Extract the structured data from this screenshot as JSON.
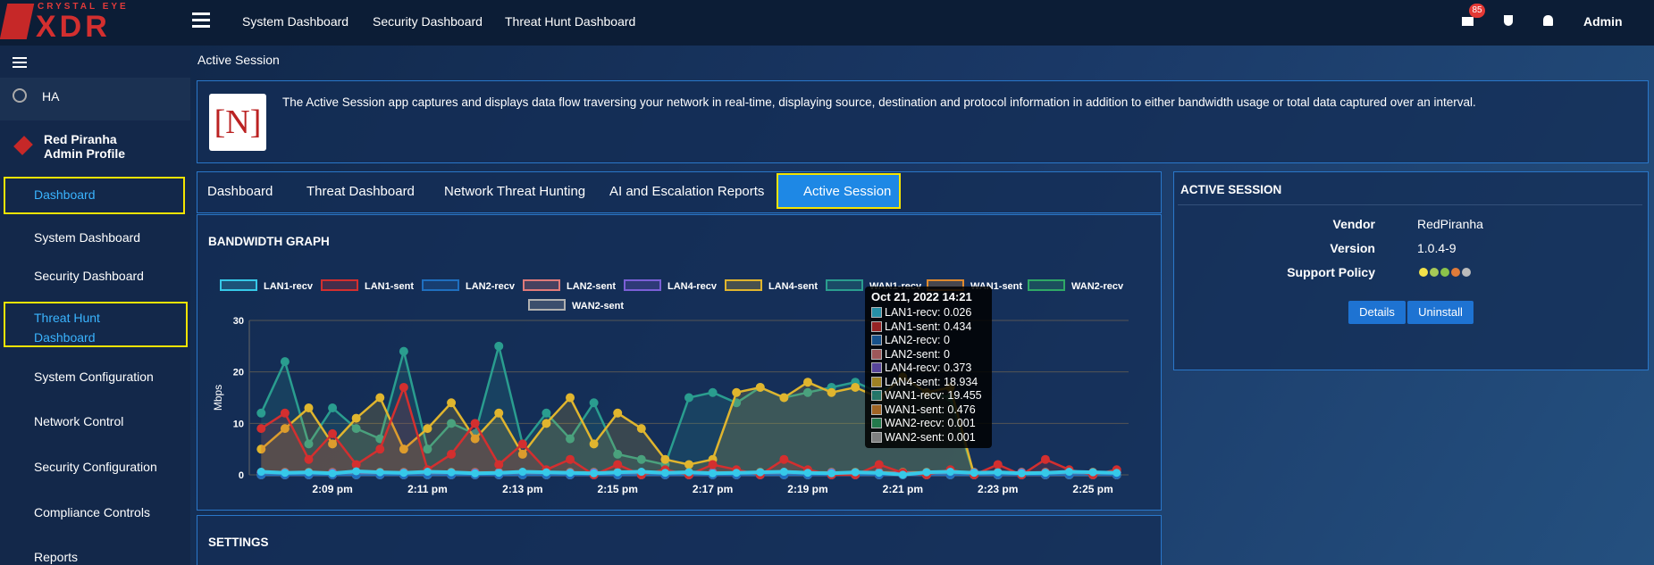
{
  "top_nav": {
    "logo_top": "CRYSTAL EYE",
    "logo_main": "XDR",
    "links": [
      "System Dashboard",
      "Security Dashboard",
      "Threat Hunt Dashboard"
    ],
    "mail_badge": 85,
    "user": "Admin"
  },
  "sidebar": {
    "ha": "HA",
    "profile": {
      "name": "Red Piranha",
      "role": "Admin Profile"
    },
    "menu": [
      {
        "label": "Dashboard",
        "children": [
          "System Dashboard",
          "Security Dashboard",
          "Threat Hunt Dashboard"
        ]
      },
      {
        "label": "System Configuration"
      },
      {
        "label": "Network Control"
      },
      {
        "label": "Security Configuration"
      },
      {
        "label": "Compliance Controls"
      },
      {
        "label": "Reports"
      }
    ]
  },
  "page": {
    "title": "Active Session",
    "app_icon": "[N]",
    "description": "The Active Session app captures and displays data flow traversing your network in real-time, displaying source, destination and protocol information in addition to either bandwidth usage or total data captured over an interval.",
    "tabs": [
      "Dashboard",
      "Threat Dashboard",
      "Network Threat Hunting",
      "AI and Escalation Reports",
      "Active Session"
    ],
    "graph_panel_title": "BANDWIDTH GRAPH",
    "settings_title": "SETTINGS"
  },
  "chart_data": {
    "type": "line",
    "y_label": "Mbps",
    "ylim": [
      0,
      30
    ],
    "yticks": [
      0,
      10,
      20,
      30
    ],
    "grid": true,
    "categories": [
      null,
      null,
      null,
      "2:09 pm",
      null,
      null,
      null,
      "2:11 pm",
      null,
      null,
      null,
      "2:13 pm",
      null,
      null,
      null,
      "2:15 pm",
      null,
      null,
      null,
      "2:17 pm",
      null,
      null,
      null,
      "2:19 pm",
      null,
      null,
      null,
      "2:21 pm",
      null,
      null,
      null,
      "2:23 pm",
      null,
      null,
      null,
      "2:25 pm",
      null
    ],
    "series": [
      {
        "name": "LAN1-recv",
        "color": "#36c9e8",
        "values": [
          0.6,
          0.4,
          0.5,
          0.3,
          0.7,
          0.5,
          0.4,
          0.6,
          0.5,
          0.3,
          0.4,
          0.6,
          0.5,
          0.4,
          0.3,
          0.5,
          0.6,
          0.4,
          0.5,
          0.3,
          0.4,
          0.5,
          0.6,
          0.4,
          0.3,
          0.5,
          0.4,
          0.03,
          0.5,
          0.6,
          0.4,
          0.5,
          0.3,
          0.4,
          0.6,
          0.5,
          0.4
        ]
      },
      {
        "name": "LAN1-sent",
        "color": "#d32f2f",
        "values": [
          9,
          12,
          3,
          8,
          2,
          5,
          17,
          1,
          4,
          10,
          2,
          6,
          1,
          3,
          0,
          2,
          0,
          1,
          0,
          2,
          1,
          0,
          3,
          1,
          0,
          0,
          2,
          0.4,
          0,
          1,
          0,
          2,
          0,
          3,
          1,
          0,
          1
        ]
      },
      {
        "name": "LAN2-recv",
        "color": "#1f6fbf",
        "values": [
          0,
          0,
          0,
          0,
          0,
          0,
          0,
          0,
          0,
          0,
          0,
          0,
          0,
          0,
          0,
          0,
          0,
          0,
          0,
          0,
          0,
          0,
          0,
          0,
          0,
          0,
          0,
          0,
          0,
          0,
          0,
          0,
          0,
          0,
          0,
          0,
          0
        ]
      },
      {
        "name": "LAN2-sent",
        "color": "#e07a7a",
        "values": [
          0,
          0,
          0,
          0,
          0,
          0,
          0,
          0,
          0,
          0,
          0,
          0,
          0,
          0,
          0,
          0,
          0,
          0,
          0,
          0,
          0,
          0,
          0,
          0,
          0,
          0,
          0,
          0,
          0,
          0,
          0,
          0,
          0,
          0,
          0,
          0,
          0
        ]
      },
      {
        "name": "LAN4-recv",
        "color": "#7b5fd6",
        "values": [
          0.4,
          0.4,
          0.4,
          0.4,
          0.4,
          0.4,
          0.4,
          0.4,
          0.4,
          0.4,
          0.4,
          0.4,
          0.4,
          0.4,
          0.4,
          0.4,
          0.4,
          0.4,
          0.4,
          0.4,
          0.4,
          0.4,
          0.4,
          0.4,
          0.4,
          0.4,
          0.4,
          0.4,
          0.4,
          0.4,
          0.4,
          0.4,
          0.4,
          0.4,
          0.4,
          0.4,
          0.4
        ]
      },
      {
        "name": "LAN4-sent",
        "color": "#e0b52e",
        "values": [
          5,
          9,
          13,
          6,
          11,
          15,
          5,
          9,
          14,
          7,
          12,
          4,
          10,
          15,
          6,
          12,
          9,
          3,
          2,
          3,
          16,
          17,
          15,
          18,
          16,
          17,
          15,
          19,
          16,
          17,
          0,
          0,
          0,
          0,
          0,
          0,
          0
        ]
      },
      {
        "name": "WAN1-recv",
        "color": "#2a9d8f",
        "values": [
          12,
          22,
          6,
          13,
          9,
          7,
          24,
          5,
          10,
          8,
          25,
          6,
          12,
          7,
          14,
          4,
          3,
          2,
          15,
          16,
          14,
          17,
          15,
          16,
          17,
          18,
          16,
          19,
          16,
          15,
          0,
          0,
          0,
          0,
          0,
          0,
          0
        ]
      },
      {
        "name": "WAN1-sent",
        "color": "#e08a2e",
        "values": [
          0.5,
          0.5,
          0.5,
          0.5,
          0.5,
          0.5,
          0.5,
          0.5,
          0.5,
          0.5,
          0.5,
          0.5,
          0.5,
          0.5,
          0.5,
          0.5,
          0.5,
          0.5,
          0.5,
          0.5,
          0.5,
          0.5,
          0.5,
          0.5,
          0.5,
          0.5,
          0.5,
          0.5,
          0.5,
          0.5,
          0.5,
          0.5,
          0.5,
          0.5,
          0.5,
          0.5,
          0.5
        ]
      },
      {
        "name": "WAN2-recv",
        "color": "#2fa866",
        "values": [
          0,
          0,
          0,
          0,
          0,
          0,
          0,
          0,
          0,
          0,
          0,
          0,
          0,
          0,
          0,
          0,
          0,
          0,
          0,
          0,
          0,
          0,
          0,
          0,
          0,
          0,
          0,
          0,
          0,
          0,
          0,
          0,
          0,
          0,
          0,
          0,
          0
        ]
      },
      {
        "name": "WAN2-sent",
        "color": "#b0b0b0",
        "values": [
          0,
          0,
          0,
          0,
          0,
          0,
          0,
          0,
          0,
          0,
          0,
          0,
          0,
          0,
          0,
          0,
          0,
          0,
          0,
          0,
          0,
          0,
          0,
          0,
          0,
          0,
          0,
          0,
          0,
          0,
          0,
          0,
          0,
          0,
          0,
          0,
          0
        ]
      }
    ]
  },
  "tooltip": {
    "title": "Oct 21, 2022 14:21",
    "items": [
      "LAN1-recv: 0.026",
      "LAN1-sent: 0.434",
      "LAN2-recv: 0",
      "LAN2-sent: 0",
      "LAN4-recv: 0.373",
      "LAN4-sent: 18.934",
      "WAN1-recv: 19.455",
      "WAN1-sent: 0.476",
      "WAN2-recv: 0.001",
      "WAN2-sent: 0.001"
    ]
  },
  "info_panel": {
    "title": "ACTIVE SESSION",
    "rows": [
      {
        "label": "Vendor",
        "value": "RedPiranha"
      },
      {
        "label": "Version",
        "value": "1.0.4-9"
      },
      {
        "label": "Support Policy"
      }
    ],
    "buttons": [
      "Details",
      "Uninstall"
    ]
  }
}
